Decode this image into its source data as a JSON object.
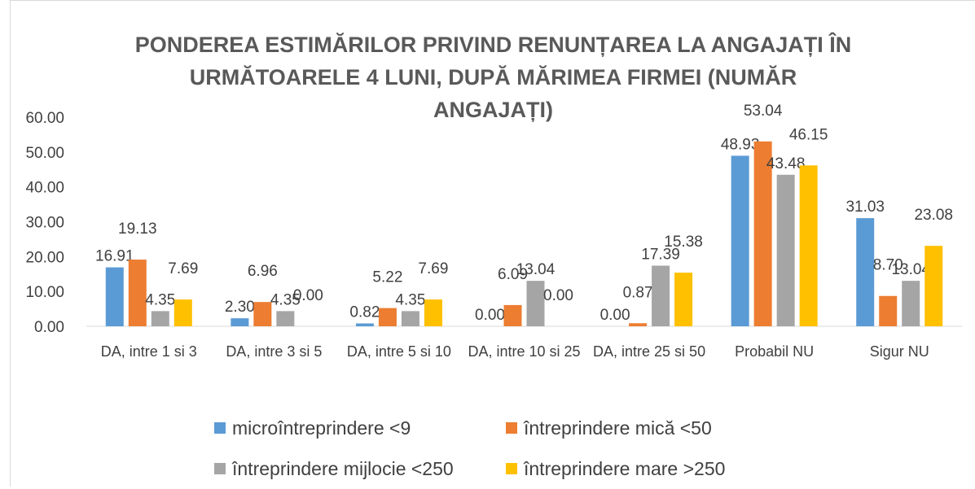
{
  "chart_data": {
    "type": "bar",
    "title": "PONDEREA ESTIMĂRILOR PRIVIND RENUNȚAREA LA ANGAJAȚI ÎN URMĂTOARELE 4 LUNI, DUPĂ MĂRIMEA FIRMEI (NUMĂR ANGAJAȚI)",
    "categories": [
      "DA, intre 1 si 3",
      "DA, intre 3 si 5",
      "DA, intre 5 si 10",
      "DA, intre 10 si 25",
      "DA, intre 25 si 50",
      "Probabil NU",
      "Sigur NU"
    ],
    "series": [
      {
        "name": "microîntreprindere <9",
        "color": "#5b9bd5",
        "values": [
          16.91,
          2.3,
          0.82,
          0,
          0,
          48.93,
          31.03
        ],
        "value_labels": [
          "16.91",
          "2.30",
          "0.82",
          "0.00",
          "0.00",
          "48.93",
          "31.03"
        ]
      },
      {
        "name": "întreprindere mică <50",
        "color": "#ed7d31",
        "values": [
          19.13,
          6.96,
          5.22,
          6.09,
          0.87,
          53.04,
          8.7
        ],
        "value_labels": [
          "19.13",
          "6.96",
          "5.22",
          "6.09",
          "0.87",
          "53.04",
          "8.70"
        ]
      },
      {
        "name": "întreprindere mijlocie <250",
        "color": "#a5a5a5",
        "values": [
          4.35,
          4.35,
          4.35,
          13.04,
          17.39,
          43.48,
          13.04
        ],
        "value_labels": [
          "4.35",
          "4.35",
          "4.35",
          "13.04",
          "17.39",
          "43.48",
          "13.04"
        ]
      },
      {
        "name": "întreprindere mare >250",
        "color": "#ffc000",
        "values": [
          7.69,
          0,
          7.69,
          0,
          15.38,
          46.15,
          23.08
        ],
        "value_labels": [
          "7.69",
          "0.00",
          "7.69",
          "0.00",
          "15.38",
          "46.15",
          "23.08"
        ]
      }
    ],
    "ylim": [
      0,
      60
    ],
    "yticks": [
      {
        "value": 0,
        "label": "0.00"
      },
      {
        "value": 10,
        "label": "10.00"
      },
      {
        "value": 20,
        "label": "20.00"
      },
      {
        "value": 30,
        "label": "30.00"
      },
      {
        "value": 40,
        "label": "40.00"
      },
      {
        "value": 50,
        "label": "50.00"
      },
      {
        "value": 60,
        "label": "60.00"
      }
    ],
    "grid": false,
    "legend": "bottom"
  }
}
